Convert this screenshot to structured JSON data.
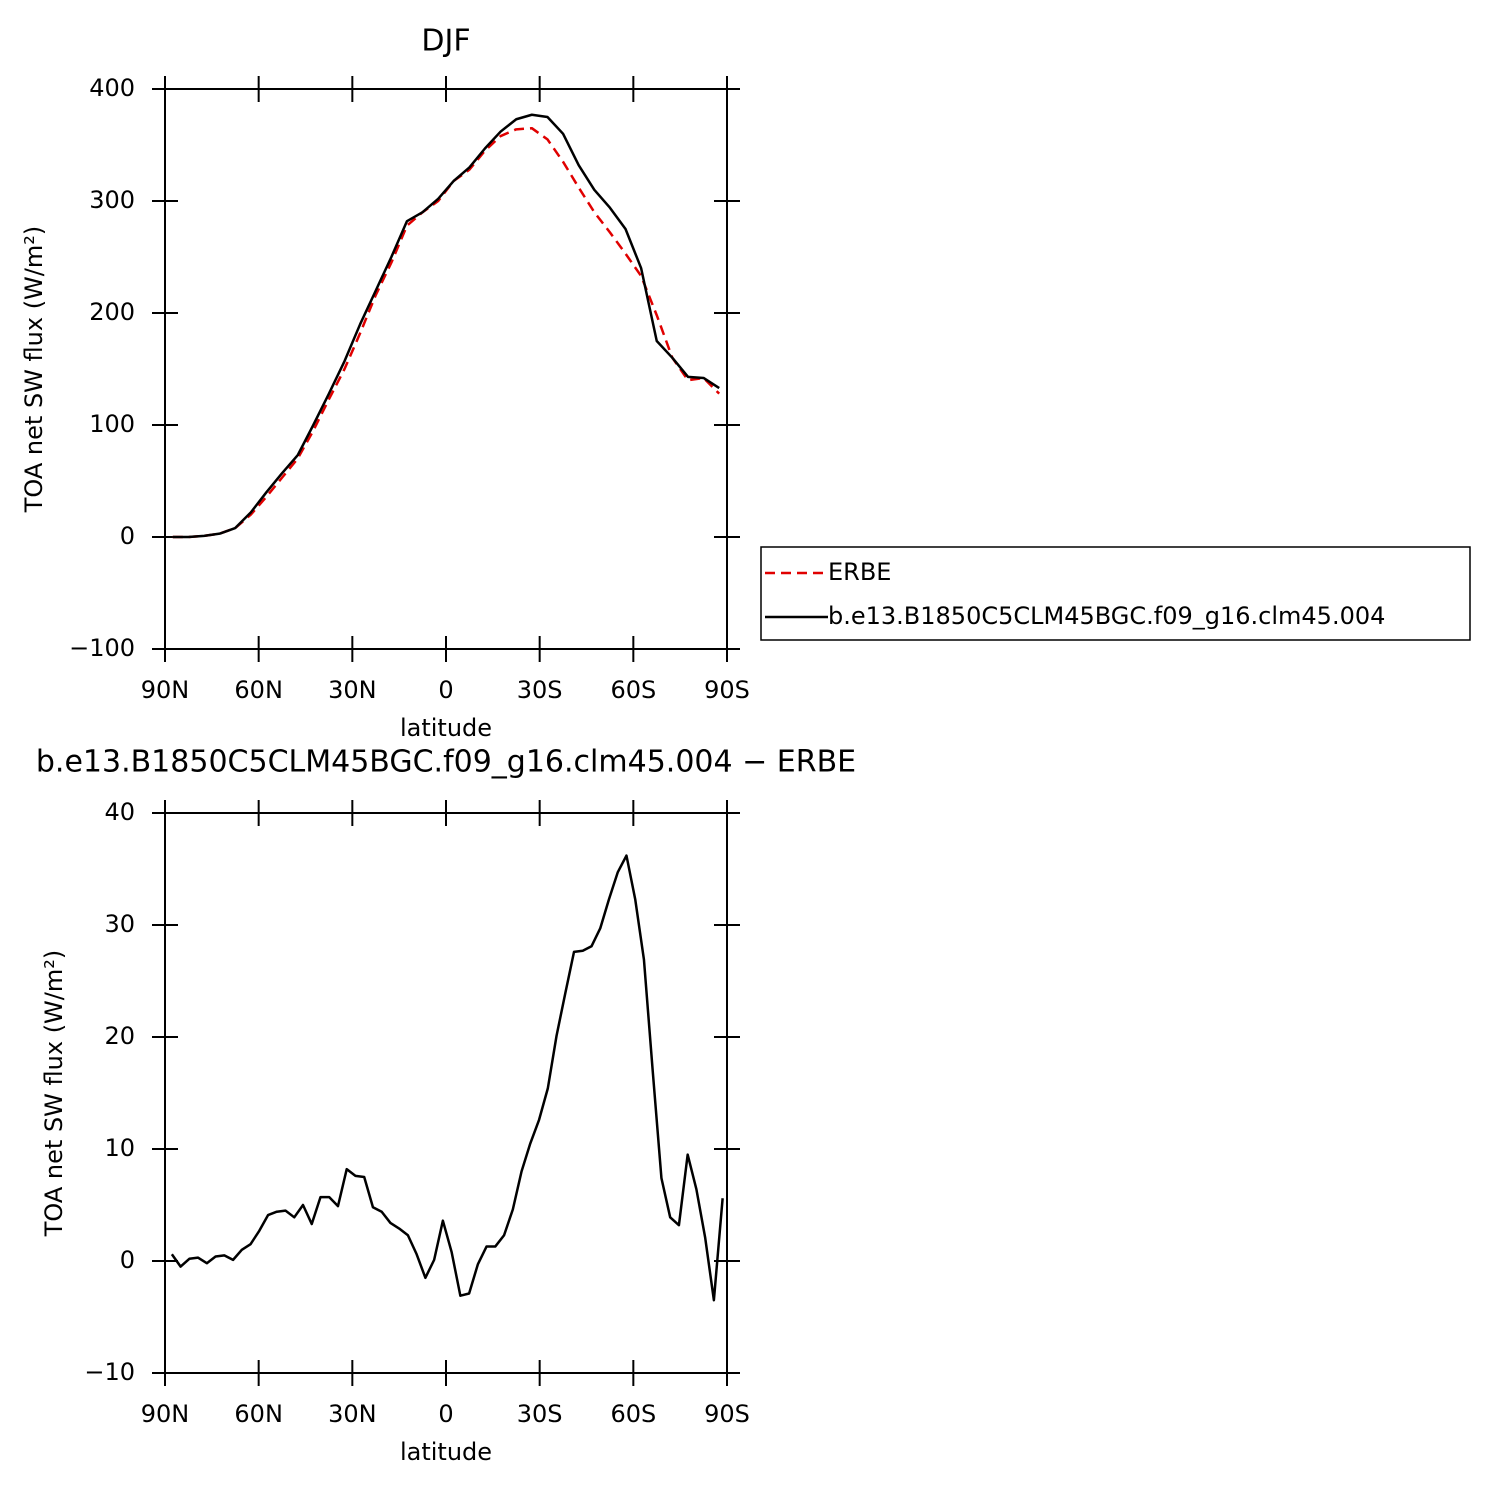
{
  "chart_data": [
    {
      "type": "line",
      "title": "DJF",
      "x_label": "latitude",
      "y_label": "TOA net SW flux (W/m²)",
      "x": [
        87.5,
        82.5,
        77.5,
        72.5,
        67.5,
        62.5,
        57.5,
        52.5,
        47.5,
        42.5,
        37.5,
        32.5,
        27.5,
        22.5,
        17.5,
        12.5,
        7.5,
        2.5,
        -2.5,
        -7.5,
        -12.5,
        -17.5,
        -22.5,
        -27.5,
        -32.5,
        -37.5,
        -42.5,
        -47.5,
        -52.5,
        -57.5,
        -62.5,
        -67.5,
        -72.5,
        -77.5,
        -82.5,
        -87.5
      ],
      "series": [
        {
          "name": "ERBE",
          "color": "#e00000",
          "dash": true,
          "values": [
            0,
            0,
            1,
            3,
            8,
            20,
            36,
            53,
            70,
            95,
            123,
            150,
            182,
            216,
            245,
            278,
            290,
            300,
            318,
            328,
            345,
            358,
            364,
            365,
            355,
            335,
            312,
            290,
            272,
            253,
            233,
            198,
            160,
            140,
            142,
            128
          ]
        },
        {
          "name": "b.e13.B1850C5CLM45BGC.f09_g16.clm45.004",
          "color": "#000000",
          "dash": false,
          "values": [
            0,
            0,
            1,
            3,
            8,
            22,
            40,
            57,
            73,
            100,
            128,
            157,
            190,
            220,
            250,
            282,
            290,
            302,
            318,
            330,
            347,
            362,
            373,
            377,
            375,
            360,
            332,
            310,
            294,
            275,
            240,
            175,
            160,
            143,
            142,
            133
          ]
        }
      ],
      "xlim": [
        90,
        -90
      ],
      "xticks": [
        {
          "value": 90,
          "label": "90N"
        },
        {
          "value": 60,
          "label": "60N"
        },
        {
          "value": 30,
          "label": "30N"
        },
        0,
        {
          "value": -30,
          "label": "30S"
        },
        {
          "value": -60,
          "label": "60S"
        },
        {
          "value": -90,
          "label": "90S"
        }
      ],
      "ylim": [
        -100,
        400
      ],
      "yticks": [
        {
          "value": -100,
          "label": "−100"
        },
        0,
        100,
        200,
        300,
        400
      ],
      "legend": "right"
    },
    {
      "type": "line",
      "title": "b.e13.B1850C5CLM45BGC.f09_g16.clm45.004 − ERBE",
      "x_label": "latitude",
      "y_label": "TOA net SW flux (W/m²)",
      "x": [
        87.8,
        85,
        82.2,
        79.4,
        76.6,
        73.8,
        71,
        68.2,
        65.4,
        62.6,
        59.8,
        57,
        54.2,
        51.4,
        48.6,
        45.8,
        43,
        40.2,
        37.4,
        34.6,
        31.8,
        29,
        26.2,
        23.4,
        20.6,
        17.8,
        15,
        12.2,
        9.4,
        6.6,
        3.8,
        1,
        -1.8,
        -4.6,
        -7.4,
        -10.2,
        -13,
        -15.8,
        -18.6,
        -21.4,
        -24.2,
        -27,
        -29.8,
        -32.6,
        -35.4,
        -38.2,
        -41,
        -43.8,
        -46.6,
        -49.4,
        -52.2,
        -55,
        -57.8,
        -60.6,
        -63.4,
        -66.2,
        -69,
        -71.8,
        -74.6,
        -77.4,
        -80.2,
        -83,
        -85.8,
        -88.6
      ],
      "series": [
        {
          "color": "#000000",
          "dash": false,
          "values": [
            0.6,
            -0.5,
            0.2,
            0.3,
            -0.2,
            0.4,
            0.5,
            0.1,
            1.0,
            1.5,
            2.7,
            4.1,
            4.4,
            4.5,
            3.9,
            5.0,
            3.3,
            5.7,
            5.7,
            4.9,
            8.2,
            7.6,
            7.5,
            4.8,
            4.4,
            3.4,
            2.9,
            2.3,
            0.6,
            -1.5,
            0.1,
            3.6,
            0.8,
            -3.1,
            -2.9,
            -0.3,
            1.3,
            1.3,
            2.3,
            4.6,
            8.0,
            10.5,
            12.6,
            15.4,
            20.1,
            23.9,
            27.6,
            27.7,
            28.1,
            29.7,
            32.3,
            34.7,
            36.2,
            32.3,
            26.9,
            17.0,
            7.4,
            3.9,
            3.2,
            9.5,
            6.4,
            2.1,
            -3.5,
            5.6
          ]
        }
      ],
      "xlim": [
        90,
        -90
      ],
      "xticks": [
        {
          "value": 90,
          "label": "90N"
        },
        {
          "value": 60,
          "label": "60N"
        },
        {
          "value": 30,
          "label": "30N"
        },
        0,
        {
          "value": -30,
          "label": "30S"
        },
        {
          "value": -60,
          "label": "60S"
        },
        {
          "value": -90,
          "label": "90S"
        }
      ],
      "ylim": [
        -10,
        40
      ],
      "yticks": [
        {
          "value": -10,
          "label": "−10"
        },
        0,
        10,
        20,
        30,
        40
      ]
    }
  ]
}
